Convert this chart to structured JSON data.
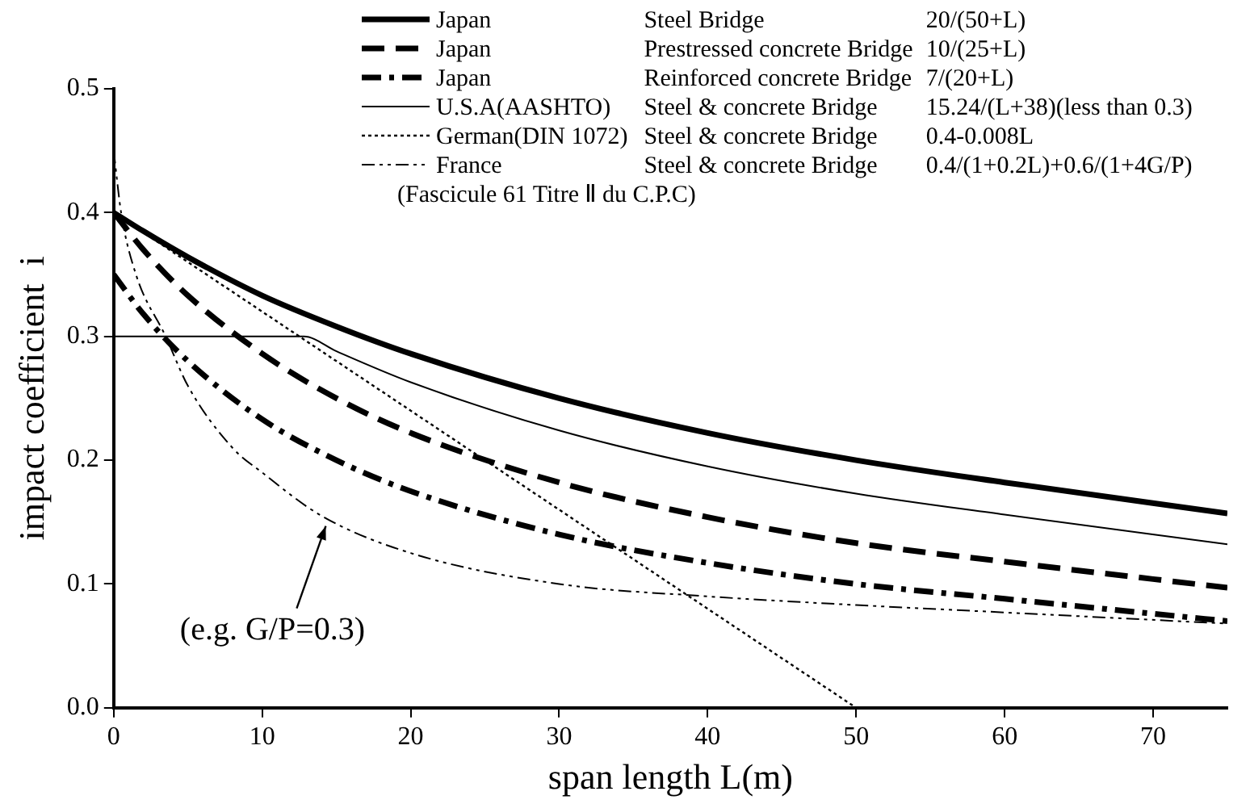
{
  "chart_data": {
    "type": "line",
    "xlabel": "span length L(m)",
    "ylabel": "impact coefficient  i",
    "xlim": [
      0,
      75
    ],
    "ylim": [
      0,
      0.5
    ],
    "xticks": [
      0,
      10,
      20,
      30,
      40,
      50,
      60,
      70
    ],
    "yticks": [
      {
        "value": 0,
        "label": "0.0"
      },
      0.1,
      0.2,
      0.3,
      0.4,
      0.5
    ],
    "grid": false,
    "legend": "top",
    "marker": "none",
    "series": [
      {
        "name": "Japan",
        "color": "#000000",
        "line_style": "solid",
        "x": [
          0,
          2,
          5,
          10,
          15,
          20,
          30,
          40,
          50,
          60,
          75
        ],
        "values": [
          0.4,
          0.385,
          0.364,
          0.333,
          0.308,
          0.286,
          0.25,
          0.222,
          0.2,
          0.182,
          0.157
        ]
      },
      {
        "name": "Japan",
        "color": "#000000",
        "line_style": "dashed",
        "x": [
          0,
          2,
          5,
          10,
          15,
          20,
          30,
          40,
          50,
          60,
          75
        ],
        "values": [
          0.4,
          0.37,
          0.333,
          0.286,
          0.25,
          0.222,
          0.182,
          0.154,
          0.133,
          0.118,
          0.097
        ]
      },
      {
        "name": "Japan",
        "color": "#000000",
        "line_style": "dashdot",
        "x": [
          0,
          2,
          5,
          10,
          15,
          20,
          30,
          40,
          50,
          60,
          75
        ],
        "values": [
          0.35,
          0.318,
          0.28,
          0.233,
          0.2,
          0.175,
          0.14,
          0.117,
          0.1,
          0.088,
          0.07
        ]
      },
      {
        "name": "U.S.A(AASHTO)",
        "color": "#000000",
        "line_style": "solid",
        "x": [
          0,
          12.8,
          15,
          20,
          30,
          40,
          50,
          60,
          75
        ],
        "values": [
          0.3,
          0.3,
          0.288,
          0.263,
          0.224,
          0.195,
          0.173,
          0.156,
          0.132
        ]
      },
      {
        "name": "German(DIN 1072)",
        "color": "#000000",
        "line_style": "dotted",
        "x": [
          0,
          50
        ],
        "values": [
          0.4,
          0
        ]
      },
      {
        "name": "France",
        "color": "#000000",
        "line_style": "dashdotdot",
        "x": [
          0,
          0.5,
          1.5,
          3.5,
          5,
          8,
          10,
          14,
          20,
          30,
          40,
          50,
          60,
          75
        ],
        "values": [
          0.45,
          0.4,
          0.35,
          0.3,
          0.26,
          0.21,
          0.19,
          0.155,
          0.125,
          0.1,
          0.09,
          0.083,
          0.077,
          0.068
        ]
      }
    ],
    "annotations": [
      "Steel Bridge",
      "20/(50+L)",
      "Prestressed concrete Bridge",
      "10/(25+L)",
      "Reinforced concrete Bridge",
      "7/(20+L)",
      "Steel & concrete Bridge",
      "15.24/(L+38)(less than 0.3)",
      "Steel & concrete Bridge",
      "0.4-0.008L",
      "Steel & concrete Bridge",
      "0.4/(1+0.2L)+0.6/(1+4G/P)",
      "(Fascicule 61 Titre Ⅱ du C.P.C)",
      {
        "text": "(e.g. G/P=0.3)",
        "x": 14.5,
        "y": 0.152
      }
    ]
  }
}
